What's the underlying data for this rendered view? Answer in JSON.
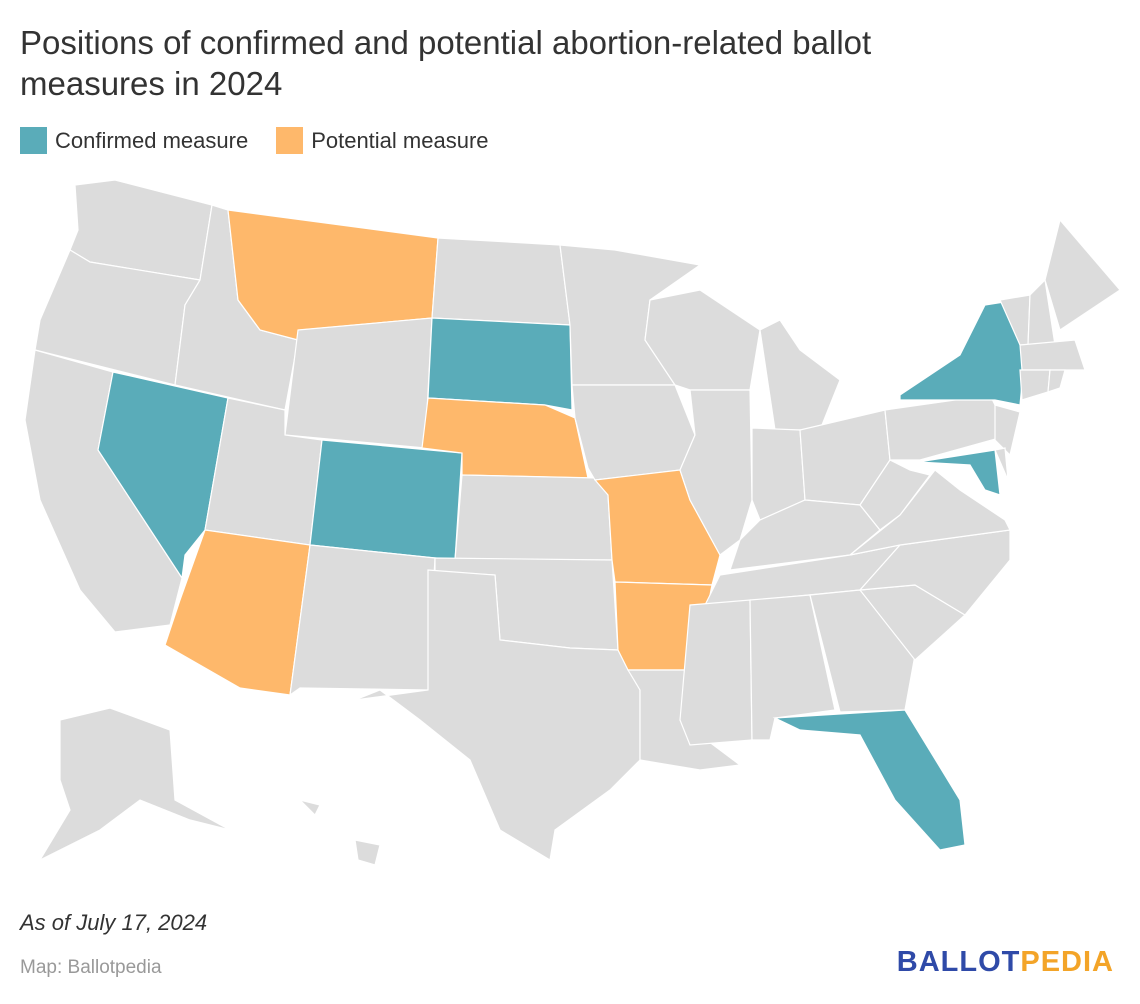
{
  "title": "Positions of confirmed and potential abortion-related ballot measures in 2024",
  "legend": [
    {
      "label": "Confirmed measure",
      "color": "#5aacb9"
    },
    {
      "label": "Potential measure",
      "color": "#feb86b"
    }
  ],
  "default_color": "#dcdcdc",
  "map": {
    "confirmed": [
      "NV",
      "CO",
      "SD",
      "NY",
      "MD",
      "FL"
    ],
    "potential": [
      "MT",
      "NE",
      "AZ",
      "MO",
      "AR"
    ]
  },
  "note": "As of July 17, 2024",
  "source": "Map: Ballotpedia",
  "logo": {
    "part1": "BALLOT",
    "part2": "PEDIA"
  }
}
